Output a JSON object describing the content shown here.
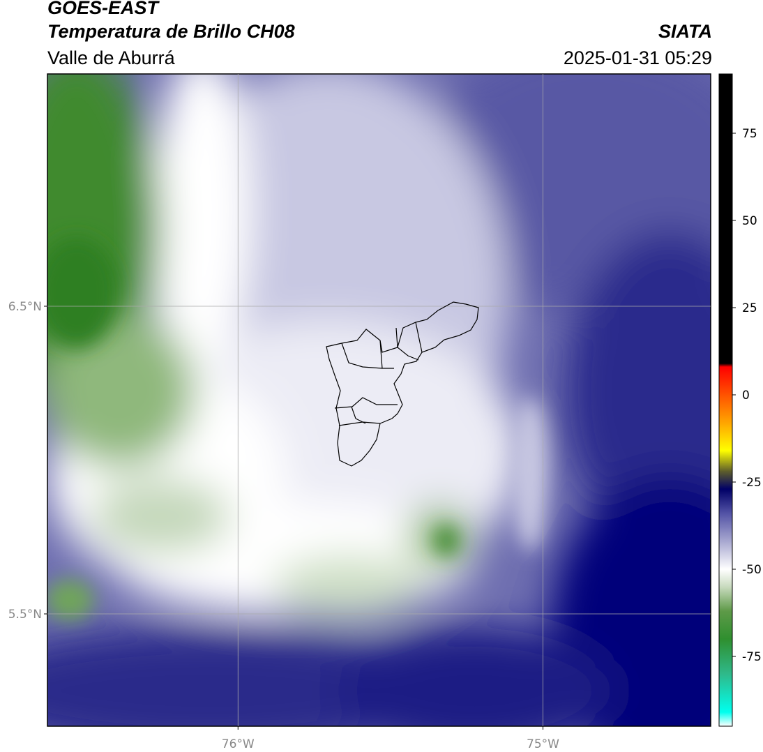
{
  "header": {
    "satellite": "GOES-EAST",
    "product": "Temperatura de Brillo CH08",
    "region": "Valle de Aburrá",
    "agency": "SIATA",
    "datetime": "2025-01-31 05:29"
  },
  "map": {
    "lon_range": [
      -76.625,
      -74.45
    ],
    "lat_range": [
      5.135,
      7.255
    ],
    "lat_ticks": [
      {
        "value": 6.5,
        "label": "6.5°N"
      },
      {
        "value": 5.5,
        "label": "5.5°N"
      }
    ],
    "lon_ticks": [
      {
        "value": -76.0,
        "label": "76°W"
      },
      {
        "value": -75.0,
        "label": "75°W"
      }
    ],
    "gridlines": true,
    "gridline_color": "#aaaaaa",
    "field_description": "brightness temperature field",
    "region_boundary_color": "#000000"
  },
  "colorbar": {
    "range": [
      -95,
      92
    ],
    "ticks": [
      {
        "value": 75,
        "label": "75"
      },
      {
        "value": 50,
        "label": "50"
      },
      {
        "value": 25,
        "label": "25"
      },
      {
        "value": 0,
        "label": "0"
      },
      {
        "value": -25,
        "label": "-25"
      },
      {
        "value": -50,
        "label": "-50"
      },
      {
        "value": -75,
        "label": "-75"
      }
    ],
    "stops": [
      {
        "value": -95,
        "color": "#ffffff"
      },
      {
        "value": -91,
        "color": "#00ffee"
      },
      {
        "value": -80,
        "color": "#2fb98a"
      },
      {
        "value": -70,
        "color": "#2f8f2f"
      },
      {
        "value": -62,
        "color": "#5e9a48"
      },
      {
        "value": -55,
        "color": "#c9dbbf"
      },
      {
        "value": -50,
        "color": "#ffffff"
      },
      {
        "value": -42,
        "color": "#a8a8d0"
      },
      {
        "value": -34,
        "color": "#5353a6"
      },
      {
        "value": -27,
        "color": "#000066"
      },
      {
        "value": -22,
        "color": "#5c5c2c"
      },
      {
        "value": -16,
        "color": "#ffff00"
      },
      {
        "value": -8,
        "color": "#ffa500"
      },
      {
        "value": 8,
        "color": "#ff0000"
      },
      {
        "value": 9,
        "color": "#000000"
      },
      {
        "value": 92,
        "color": "#000000"
      }
    ]
  }
}
